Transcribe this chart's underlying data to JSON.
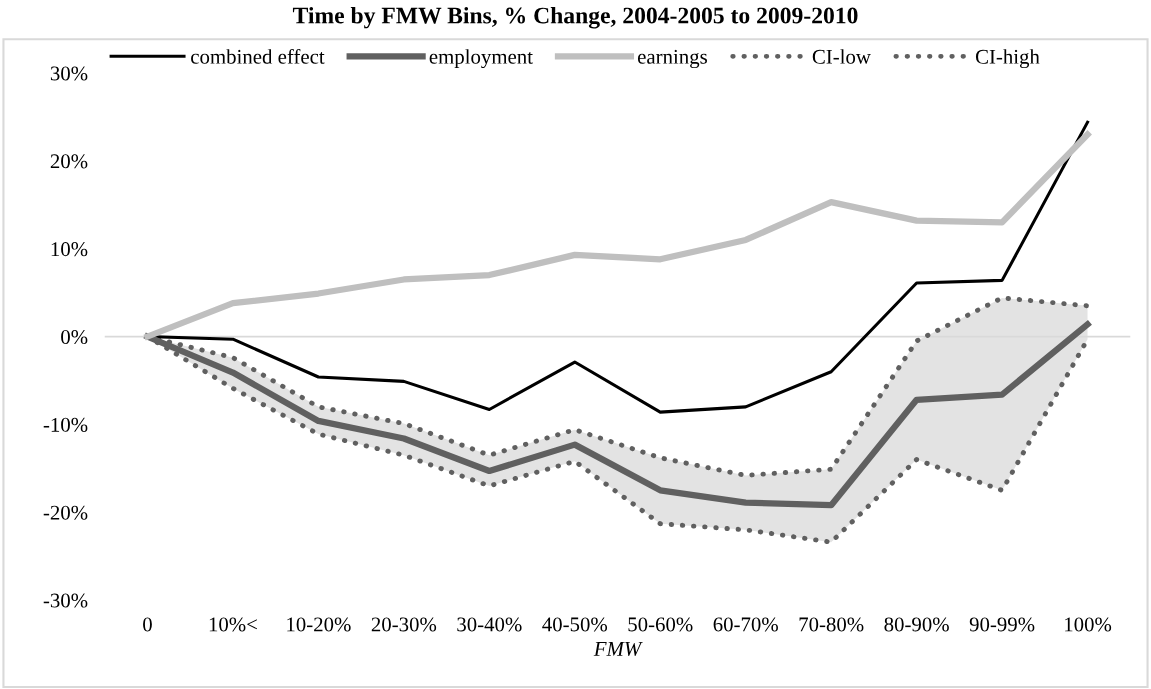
{
  "chart_data": {
    "type": "line",
    "title": "Time by FMW Bins, % Change, 2004-2005 to 2009-2010",
    "xlabel": "FMW",
    "categories": [
      "0",
      "10%<",
      "10-20%",
      "20-30%",
      "30-40%",
      "40-50%",
      "50-60%",
      "60-70%",
      "70-80%",
      "80-90%",
      "90-99%",
      "100%"
    ],
    "series": [
      {
        "name": "combined effect",
        "color": "#000000",
        "values": [
          0,
          -0.3,
          -4.6,
          -5.1,
          -8.3,
          -2.9,
          -8.6,
          -8.0,
          -4.0,
          6.1,
          6.4,
          24.4
        ]
      },
      {
        "name": "employment",
        "color": "#606060",
        "values": [
          0,
          -4.1,
          -9.6,
          -11.6,
          -15.3,
          -12.3,
          -17.5,
          -18.9,
          -19.2,
          -7.2,
          -6.6,
          1.4
        ],
        "lower": [
          0,
          -5.9,
          -11.1,
          -13.5,
          -17.0,
          -14.2,
          -21.3,
          -22.0,
          -23.4,
          -14.0,
          -17.5,
          -0.3
        ],
        "upper": [
          0,
          -2.4,
          -8.0,
          -9.9,
          -13.5,
          -10.6,
          -13.8,
          -15.8,
          -15.1,
          -0.5,
          4.4,
          3.5
        ]
      },
      {
        "name": "earnings",
        "color": "#bfbfbf",
        "values": [
          0,
          3.8,
          4.9,
          6.5,
          7.0,
          9.3,
          8.8,
          11.0,
          15.3,
          13.2,
          13.0,
          23.0
        ]
      },
      {
        "name": "CI-low",
        "color": "#606060",
        "line_style": "dotted",
        "values": [
          0,
          -5.9,
          -11.1,
          -13.5,
          -17.0,
          -14.2,
          -21.3,
          -22.0,
          -23.4,
          -14.0,
          -17.5,
          -0.3
        ]
      },
      {
        "name": "CI-high",
        "color": "#606060",
        "line_style": "dotted",
        "values": [
          0,
          -2.4,
          -8.0,
          -9.9,
          -13.5,
          -10.6,
          -13.8,
          -15.8,
          -15.1,
          -0.5,
          4.4,
          3.5
        ]
      }
    ],
    "ylim": [
      -30,
      30
    ],
    "yticks": [
      {
        "value": -30,
        "label": "-30%"
      },
      {
        "value": -20,
        "label": "-20%"
      },
      {
        "value": -10,
        "label": "-10%"
      },
      {
        "value": 0,
        "label": "0%"
      },
      {
        "value": 10,
        "label": "10%"
      },
      {
        "value": 20,
        "label": "20%"
      },
      {
        "value": 30,
        "label": "30%"
      }
    ],
    "ref_lines": [
      {
        "axis": "y",
        "value": 0,
        "color": "#d9d9d9"
      }
    ],
    "grid": false,
    "legend": "top",
    "marker": "none"
  }
}
